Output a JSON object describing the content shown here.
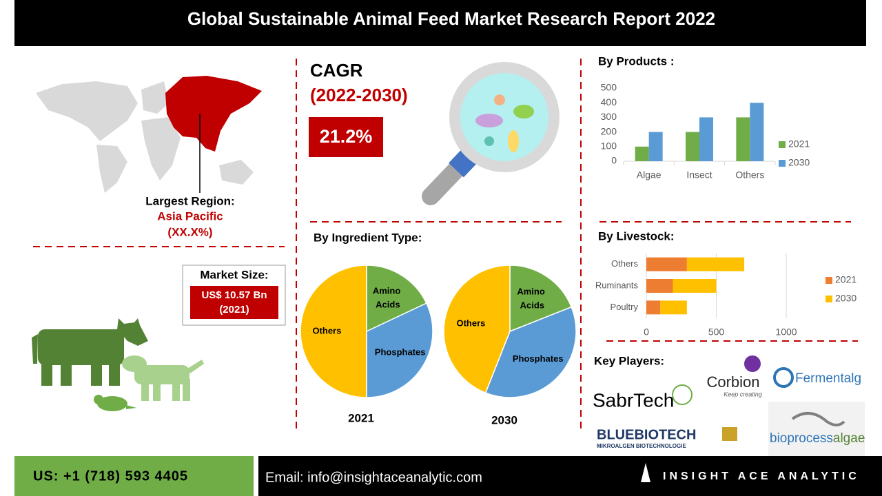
{
  "header": {
    "title": "Global Sustainable Animal  Feed Market Research Report 2022"
  },
  "region": {
    "label": "Largest Region:",
    "name": "Asia Pacific",
    "share": "(XX.X%)"
  },
  "cagr": {
    "label": "CAGR",
    "period": "(2022-2030)",
    "value": "21.2%"
  },
  "market_size": {
    "label": "Market Size:",
    "value": "US$ 10.57 Bn",
    "year": "(2021)"
  },
  "ingredient_title": "By Ingredient Type:",
  "key_players": {
    "title": "Key Players:",
    "sabrtech": "SabrTech",
    "corbion": "Corbion",
    "corbion_tagline": "Keep creating",
    "fermentalg": "Fermentalg",
    "bluebiotech": "BLUEBIOTECH",
    "bluebiotech_tagline": "MIKROALGEN BIOTECHNOLOGIE",
    "bioprocess": "bioprocess",
    "algae": "algae"
  },
  "footer": {
    "phone": "US: +1 (718) 593 4405",
    "email": "Email: info@insightaceanalytic.com",
    "brand": "INSIGHT ACE ANALYTIC"
  },
  "chart_data": [
    {
      "type": "bar",
      "title": "By Products :",
      "categories": [
        "Algae",
        "Insect",
        "Others"
      ],
      "series": [
        {
          "name": "2021",
          "color": "#70ad47",
          "values": [
            100,
            200,
            300
          ]
        },
        {
          "name": "2030",
          "color": "#5b9bd5",
          "values": [
            200,
            300,
            400
          ]
        }
      ],
      "ylim": [
        0,
        500
      ],
      "yticks": [
        0,
        100,
        200,
        300,
        400,
        500
      ],
      "grid": false,
      "legend": "right"
    },
    {
      "type": "bar",
      "orientation": "horizontal",
      "stacked": true,
      "title": "By Livestock:",
      "categories": [
        "Poultry",
        "Ruminants",
        "Others"
      ],
      "series": [
        {
          "name": "2021",
          "color": "#ed7d31",
          "values": [
            100,
            190,
            290
          ]
        },
        {
          "name": "2030",
          "color": "#ffc000",
          "values": [
            190,
            310,
            410
          ]
        }
      ],
      "xlim": [
        0,
        1000
      ],
      "xticks": [
        0,
        500,
        1000
      ],
      "grid": true,
      "legend": "right"
    },
    {
      "type": "pie",
      "title": "2021",
      "categories": [
        "Amino Acids",
        "Phosphates",
        "Others"
      ],
      "values": [
        18,
        32,
        50
      ],
      "colors": [
        "#70ad47",
        "#5b9bd5",
        "#ffc000"
      ]
    },
    {
      "type": "pie",
      "title": "2030",
      "categories": [
        "Amino Acids",
        "Phosphates",
        "Others"
      ],
      "values": [
        19,
        37,
        44
      ],
      "colors": [
        "#70ad47",
        "#5b9bd5",
        "#ffc000"
      ]
    }
  ]
}
